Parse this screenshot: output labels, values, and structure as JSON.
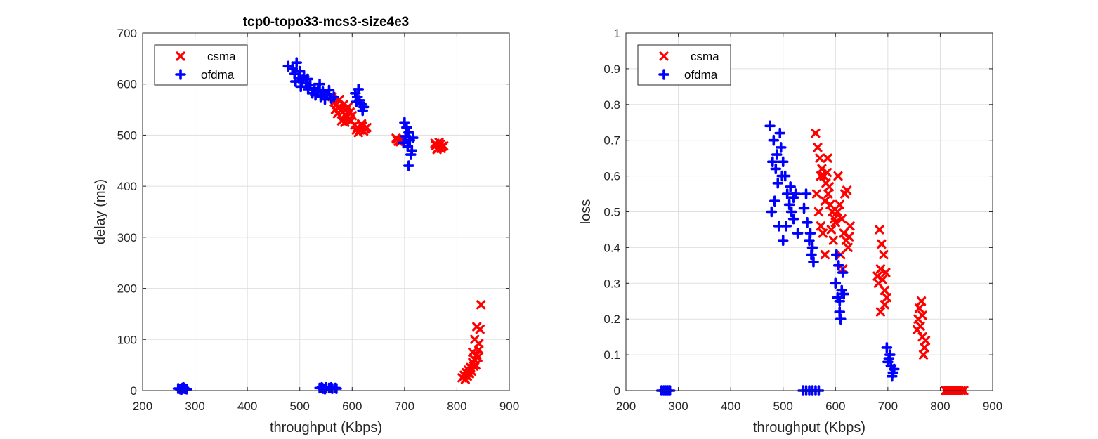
{
  "chart_data": [
    {
      "type": "scatter",
      "title": "tcp0-topo33-mcs3-size4e3",
      "xlabel": "throughput (Kbps)",
      "ylabel": "delay (ms)",
      "xlim": [
        200,
        900
      ],
      "ylim": [
        0,
        700
      ],
      "xticks": [
        200,
        300,
        400,
        500,
        600,
        700,
        800,
        900
      ],
      "yticks": [
        0,
        100,
        200,
        300,
        400,
        500,
        600,
        700
      ],
      "grid": true,
      "legend_position": "top-left",
      "series": [
        {
          "name": "csma",
          "marker": "x",
          "color": "#ff0000",
          "points": [
            [
              562,
              575
            ],
            [
              566,
              565
            ],
            [
              570,
              560
            ],
            [
              574,
              555
            ],
            [
              578,
              548
            ],
            [
              582,
              545
            ],
            [
              586,
              540
            ],
            [
              590,
              535
            ],
            [
              594,
              530
            ],
            [
              580,
              528
            ],
            [
              588,
              550
            ],
            [
              596,
              545
            ],
            [
              600,
              538
            ],
            [
              572,
              542
            ],
            [
              584,
              560
            ],
            [
              576,
              570
            ],
            [
              592,
              555
            ],
            [
              598,
              528
            ],
            [
              586,
              525
            ],
            [
              568,
              550
            ],
            [
              605,
              520
            ],
            [
              610,
              515
            ],
            [
              615,
              510
            ],
            [
              620,
              518
            ],
            [
              625,
              512
            ],
            [
              612,
              505
            ],
            [
              618,
              522
            ],
            [
              628,
              515
            ],
            [
              608,
              510
            ],
            [
              622,
              508
            ],
            [
              685,
              492
            ],
            [
              690,
              490
            ],
            [
              688,
              488
            ],
            [
              694,
              491
            ],
            [
              684,
              494
            ],
            [
              692,
              487
            ],
            [
              760,
              480
            ],
            [
              764,
              475
            ],
            [
              768,
              482
            ],
            [
              772,
              478
            ],
            [
              762,
              472
            ],
            [
              766,
              486
            ],
            [
              770,
              474
            ],
            [
              775,
              479
            ],
            [
              758,
              484
            ],
            [
              810,
              25
            ],
            [
              814,
              30
            ],
            [
              818,
              35
            ],
            [
              822,
              40
            ],
            [
              826,
              45
            ],
            [
              830,
              55
            ],
            [
              834,
              60
            ],
            [
              838,
              70
            ],
            [
              842,
              80
            ],
            [
              820,
              28
            ],
            [
              828,
              38
            ],
            [
              836,
              50
            ],
            [
              840,
              65
            ],
            [
              832,
              48
            ],
            [
              824,
              33
            ],
            [
              816,
              22
            ],
            [
              844,
              120
            ],
            [
              838,
              125
            ],
            [
              846,
              168
            ],
            [
              842,
              92
            ],
            [
              834,
              100
            ],
            [
              830,
              75
            ]
          ]
        },
        {
          "name": "ofdma",
          "marker": "+",
          "color": "#0000ff",
          "points": [
            [
              478,
              635
            ],
            [
              486,
              630
            ],
            [
              494,
              642
            ],
            [
              490,
              620
            ],
            [
              498,
              612
            ],
            [
              505,
              608
            ],
            [
              512,
              602
            ],
            [
              520,
              598
            ],
            [
              528,
              592
            ],
            [
              535,
              588
            ],
            [
              492,
              605
            ],
            [
              500,
              625
            ],
            [
              508,
              615
            ],
            [
              516,
              590
            ],
            [
              524,
              582
            ],
            [
              530,
              578
            ],
            [
              544,
              585
            ],
            [
              552,
              580
            ],
            [
              560,
              572
            ],
            [
              548,
              570
            ],
            [
              556,
              588
            ],
            [
              565,
              575
            ],
            [
              538,
              600
            ],
            [
              540,
              575
            ],
            [
              502,
              595
            ],
            [
              515,
              610
            ],
            [
              606,
              582
            ],
            [
              610,
              575
            ],
            [
              614,
              568
            ],
            [
              618,
              560
            ],
            [
              622,
              555
            ],
            [
              612,
              590
            ],
            [
              608,
              565
            ],
            [
              620,
              548
            ],
            [
              700,
              525
            ],
            [
              704,
              515
            ],
            [
              708,
              505
            ],
            [
              702,
              498
            ],
            [
              710,
              490
            ],
            [
              706,
              478
            ],
            [
              714,
              470
            ],
            [
              712,
              462
            ],
            [
              698,
              485
            ],
            [
              708,
              440
            ],
            [
              716,
              495
            ],
            [
              268,
              4
            ],
            [
              272,
              3
            ],
            [
              276,
              5
            ],
            [
              280,
              4
            ],
            [
              284,
              3
            ],
            [
              274,
              2
            ],
            [
              278,
              6
            ],
            [
              538,
              5
            ],
            [
              544,
              4
            ],
            [
              550,
              6
            ],
            [
              556,
              5
            ],
            [
              562,
              4
            ],
            [
              568,
              5
            ],
            [
              548,
              3
            ],
            [
              560,
              6
            ],
            [
              570,
              4
            ],
            [
              542,
              6
            ]
          ]
        }
      ]
    },
    {
      "type": "scatter",
      "title": "",
      "xlabel": "throughput (Kbps)",
      "ylabel": "loss",
      "xlim": [
        200,
        900
      ],
      "ylim": [
        0,
        1
      ],
      "xticks": [
        200,
        300,
        400,
        500,
        600,
        700,
        800,
        900
      ],
      "yticks": [
        0,
        0.1,
        0.2,
        0.3,
        0.4,
        0.5,
        0.6,
        0.7,
        0.8,
        0.9,
        1
      ],
      "grid": true,
      "legend_position": "top-left",
      "series": [
        {
          "name": "csma",
          "marker": "x",
          "color": "#ff0000",
          "points": [
            [
              562,
              0.72
            ],
            [
              566,
              0.68
            ],
            [
              570,
              0.65
            ],
            [
              574,
              0.62
            ],
            [
              578,
              0.6
            ],
            [
              582,
              0.58
            ],
            [
              586,
              0.55
            ],
            [
              590,
              0.52
            ],
            [
              594,
              0.5
            ],
            [
              598,
              0.48
            ],
            [
              564,
              0.55
            ],
            [
              568,
              0.5
            ],
            [
              572,
              0.46
            ],
            [
              576,
              0.44
            ],
            [
              580,
              0.53
            ],
            [
              584,
              0.61
            ],
            [
              588,
              0.57
            ],
            [
              592,
              0.45
            ],
            [
              596,
              0.42
            ],
            [
              600,
              0.47
            ],
            [
              604,
              0.5
            ],
            [
              608,
              0.52
            ],
            [
              612,
              0.48
            ],
            [
              616,
              0.44
            ],
            [
              620,
              0.42
            ],
            [
              624,
              0.4
            ],
            [
              628,
              0.46
            ],
            [
              618,
              0.55
            ],
            [
              622,
              0.56
            ],
            [
              610,
              0.38
            ],
            [
              614,
              0.34
            ],
            [
              605,
              0.6
            ],
            [
              626,
              0.43
            ],
            [
              580,
              0.38
            ],
            [
              585,
              0.65
            ],
            [
              572,
              0.6
            ],
            [
              682,
              0.3
            ],
            [
              686,
              0.34
            ],
            [
              690,
              0.31
            ],
            [
              694,
              0.28
            ],
            [
              698,
              0.26
            ],
            [
              684,
              0.45
            ],
            [
              688,
              0.41
            ],
            [
              692,
              0.38
            ],
            [
              686,
              0.22
            ],
            [
              694,
              0.24
            ],
            [
              680,
              0.32
            ],
            [
              696,
              0.33
            ],
            [
              758,
              0.2
            ],
            [
              762,
              0.18
            ],
            [
              766,
              0.15
            ],
            [
              770,
              0.12
            ],
            [
              760,
              0.23
            ],
            [
              764,
              0.25
            ],
            [
              768,
              0.1
            ],
            [
              772,
              0.14
            ],
            [
              756,
              0.17
            ],
            [
              766,
              0.21
            ],
            [
              810,
              0
            ],
            [
              815,
              0
            ],
            [
              820,
              0
            ],
            [
              825,
              0
            ],
            [
              830,
              0
            ],
            [
              835,
              0
            ],
            [
              840,
              0
            ],
            [
              845,
              0
            ]
          ]
        },
        {
          "name": "ofdma",
          "marker": "+",
          "color": "#0000ff",
          "points": [
            [
              475,
              0.74
            ],
            [
              482,
              0.7
            ],
            [
              488,
              0.66
            ],
            [
              494,
              0.72
            ],
            [
              486,
              0.62
            ],
            [
              490,
              0.58
            ],
            [
              496,
              0.68
            ],
            [
              500,
              0.64
            ],
            [
              504,
              0.6
            ],
            [
              508,
              0.55
            ],
            [
              512,
              0.52
            ],
            [
              516,
              0.5
            ],
            [
              520,
              0.48
            ],
            [
              524,
              0.55
            ],
            [
              528,
              0.44
            ],
            [
              478,
              0.5
            ],
            [
              484,
              0.53
            ],
            [
              492,
              0.46
            ],
            [
              500,
              0.42
            ],
            [
              506,
              0.46
            ],
            [
              514,
              0.57
            ],
            [
              520,
              0.54
            ],
            [
              498,
              0.6
            ],
            [
              480,
              0.64
            ],
            [
              540,
              0.51
            ],
            [
              546,
              0.47
            ],
            [
              550,
              0.42
            ],
            [
              554,
              0.38
            ],
            [
              558,
              0.36
            ],
            [
              544,
              0.55
            ],
            [
              552,
              0.44
            ],
            [
              556,
              0.4
            ],
            [
              600,
              0.3
            ],
            [
              604,
              0.26
            ],
            [
              608,
              0.22
            ],
            [
              612,
              0.28
            ],
            [
              606,
              0.35
            ],
            [
              614,
              0.33
            ],
            [
              610,
              0.2
            ],
            [
              616,
              0.27
            ],
            [
              602,
              0.38
            ],
            [
              608,
              0.25
            ],
            [
              698,
              0.12
            ],
            [
              702,
              0.09
            ],
            [
              706,
              0.07
            ],
            [
              710,
              0.05
            ],
            [
              704,
              0.1
            ],
            [
              700,
              0.08
            ],
            [
              712,
              0.06
            ],
            [
              708,
              0.04
            ],
            [
              268,
              0
            ],
            [
              272,
              0
            ],
            [
              276,
              0
            ],
            [
              280,
              0
            ],
            [
              284,
              0
            ],
            [
              538,
              0
            ],
            [
              544,
              0
            ],
            [
              550,
              0
            ],
            [
              556,
              0
            ],
            [
              562,
              0
            ],
            [
              568,
              0
            ]
          ]
        }
      ]
    }
  ]
}
